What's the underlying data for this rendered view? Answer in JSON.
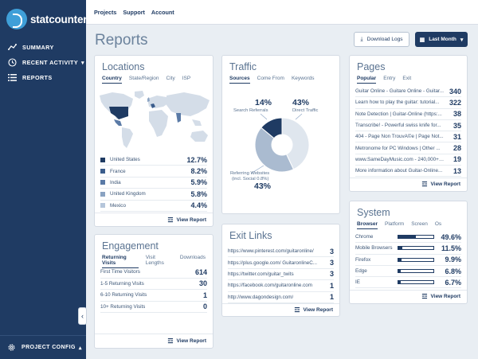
{
  "brand": {
    "logo_text": "statcounter"
  },
  "sidebar": {
    "items": [
      {
        "label": "SUMMARY",
        "icon": "summary-icon"
      },
      {
        "label": "RECENT ACTIVITY",
        "icon": "clock-icon",
        "chevron": "▾"
      },
      {
        "label": "REPORTS",
        "icon": "list-icon"
      }
    ],
    "footer_label": "PROJECT CONFIG",
    "footer_chevron": "▴",
    "collapse": "‹"
  },
  "topbar": {
    "links": [
      "Projects",
      "Support",
      "Account"
    ]
  },
  "page": {
    "title": "Reports"
  },
  "buttons": {
    "download": "Download Logs",
    "month": "Last Month"
  },
  "view_report": "View Report",
  "locations": {
    "title": "Locations",
    "tabs": [
      "Country",
      "State/Region",
      "City",
      "ISP"
    ],
    "rows": [
      {
        "label": "United States",
        "value": "12.7%",
        "color": "#1f3b63"
      },
      {
        "label": "France",
        "value": "8.2%",
        "color": "#3b5d8c"
      },
      {
        "label": "India",
        "value": "5.9%",
        "color": "#5a7aa6"
      },
      {
        "label": "United Kingdom",
        "value": "5.8%",
        "color": "#8aa3c2"
      },
      {
        "label": "Mexico",
        "value": "4.4%",
        "color": "#b5c6db"
      }
    ]
  },
  "traffic": {
    "title": "Traffic",
    "tabs": [
      "Sources",
      "Come From",
      "Keywords"
    ],
    "segments": [
      {
        "label": "Search Referrals",
        "pct": 14,
        "value": "14%",
        "color": "#1f3b63"
      },
      {
        "label": "Direct Traffic",
        "pct": 43,
        "value": "43%",
        "color": "#dfe6ee"
      },
      {
        "label": "Referring Websites (incl. Social 0.8%)",
        "pct": 43,
        "value": "43%",
        "color": "#aabbd0"
      }
    ],
    "labels": {
      "search": "Search Referrals",
      "direct": "Direct Traffic",
      "referring_1": "Referring Websites",
      "referring_2": "(incl. Social 0.8%)"
    }
  },
  "pages": {
    "title": "Pages",
    "tabs": [
      "Popular",
      "Entry",
      "Exit"
    ],
    "rows": [
      {
        "label": "Guitar Online - Guitare Online - Guitar...",
        "value": "340"
      },
      {
        "label": "Learn how to play the guitar: tutorial...",
        "value": "322"
      },
      {
        "label": "Note Detection | Guitar-Online (https:...",
        "value": "38"
      },
      {
        "label": "Transcribe! - Powerful swiss knife for...",
        "value": "35"
      },
      {
        "label": "404 - Page Non TrouvÃ©e | Page Not...",
        "value": "31"
      },
      {
        "label": "Metronome for PC Windows | Other ...",
        "value": "28"
      },
      {
        "label": "www.SameDayMusic.com - 240,000+ it...",
        "value": "19"
      },
      {
        "label": "More information about Guitar-Online...",
        "value": "13"
      }
    ]
  },
  "engagement": {
    "title": "Engagement",
    "tabs": [
      "Returning Visits",
      "Visit Lengths",
      "Downloads"
    ],
    "rows": [
      {
        "label": "First Time Visitors",
        "value": "614"
      },
      {
        "label": "1-5 Returning Visits",
        "value": "30"
      },
      {
        "label": "6-10 Returning Visits",
        "value": "1"
      },
      {
        "label": "10+ Returning Visits",
        "value": "0"
      }
    ]
  },
  "exit_links": {
    "title": "Exit Links",
    "rows": [
      {
        "label": "https://www.pinterest.com/guitaronline/",
        "value": "3"
      },
      {
        "label": "https://plus.google.com/ GuitaronlineC...",
        "value": "3"
      },
      {
        "label": "https://twitter.com/guitar_twits",
        "value": "3"
      },
      {
        "label": "https://facebook.com/guitaronline.com",
        "value": "1"
      },
      {
        "label": "http://www.dagondesign.com/",
        "value": "1"
      }
    ]
  },
  "system": {
    "title": "System",
    "tabs": [
      "Browser",
      "Platform",
      "Screen",
      "Os"
    ],
    "rows": [
      {
        "label": "Chrome",
        "value": "49.6%",
        "pct": 49.6
      },
      {
        "label": "Mobile Browsers",
        "value": "11.5%",
        "pct": 11.5
      },
      {
        "label": "Firefox",
        "value": "9.9%",
        "pct": 9.9
      },
      {
        "label": "Edge",
        "value": "6.8%",
        "pct": 6.8
      },
      {
        "label": "IE",
        "value": "6.7%",
        "pct": 6.7
      }
    ]
  }
}
